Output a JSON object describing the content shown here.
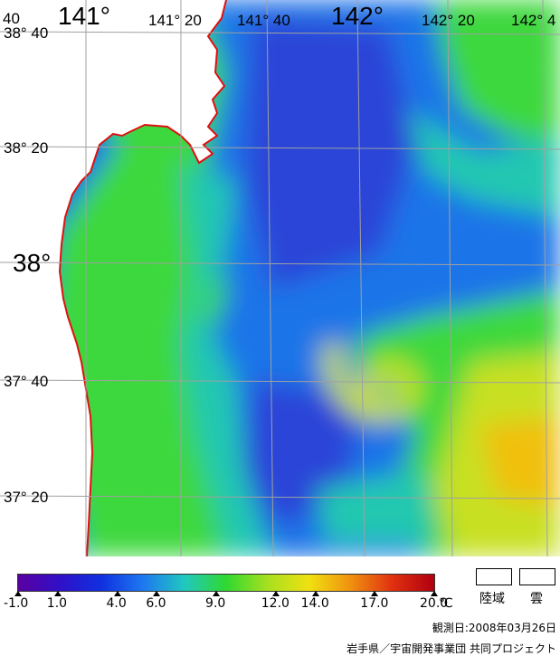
{
  "map": {
    "lon_labels": [
      {
        "text": "40",
        "id": "lon-140-40"
      },
      {
        "text": "141°",
        "id": "lon-141"
      },
      {
        "text": "141° 20",
        "id": "lon-141-20"
      },
      {
        "text": "141° 40",
        "id": "lon-141-40"
      },
      {
        "text": "142°",
        "id": "lon-142"
      },
      {
        "text": "142° 20",
        "id": "lon-142-20"
      },
      {
        "text": "142° 4",
        "id": "lon-142-40"
      }
    ],
    "lat_labels": [
      {
        "text": "38° 40",
        "id": "lat-38-40"
      },
      {
        "text": "38° 20",
        "id": "lat-38-20"
      },
      {
        "text": "38°",
        "id": "lat-38"
      },
      {
        "text": "37° 40",
        "id": "lat-37-40"
      },
      {
        "text": "37° 20",
        "id": "lat-37-20"
      }
    ],
    "colors": {
      "land": "#ffffff",
      "coastline": "#e01010",
      "grid": "#a0a0a0",
      "cold": "#2a44d8",
      "cool": "#1e74e8",
      "mid": "#22c8b0",
      "green": "#3cd83c",
      "warm": "#c8e020",
      "hot": "#f0c010"
    }
  },
  "legend": {
    "ticks": [
      "-1.0",
      "1.0",
      "4.0",
      "6.0",
      "9.0",
      "12.0",
      "14.0",
      "17.0",
      "20.0"
    ],
    "unit": "℃",
    "gradient": [
      "#5a00a0",
      "#3010c8",
      "#1030e0",
      "#1e78f0",
      "#20c8c0",
      "#30d830",
      "#a8e020",
      "#f0e010",
      "#f09010",
      "#e03010",
      "#b00010"
    ],
    "land_label": "陸域",
    "cloud_label": "雲"
  },
  "footer": {
    "date": "観測日:2008年03月26日",
    "credit": "岩手県／宇宙開発事業団 共同プロジェクト"
  }
}
